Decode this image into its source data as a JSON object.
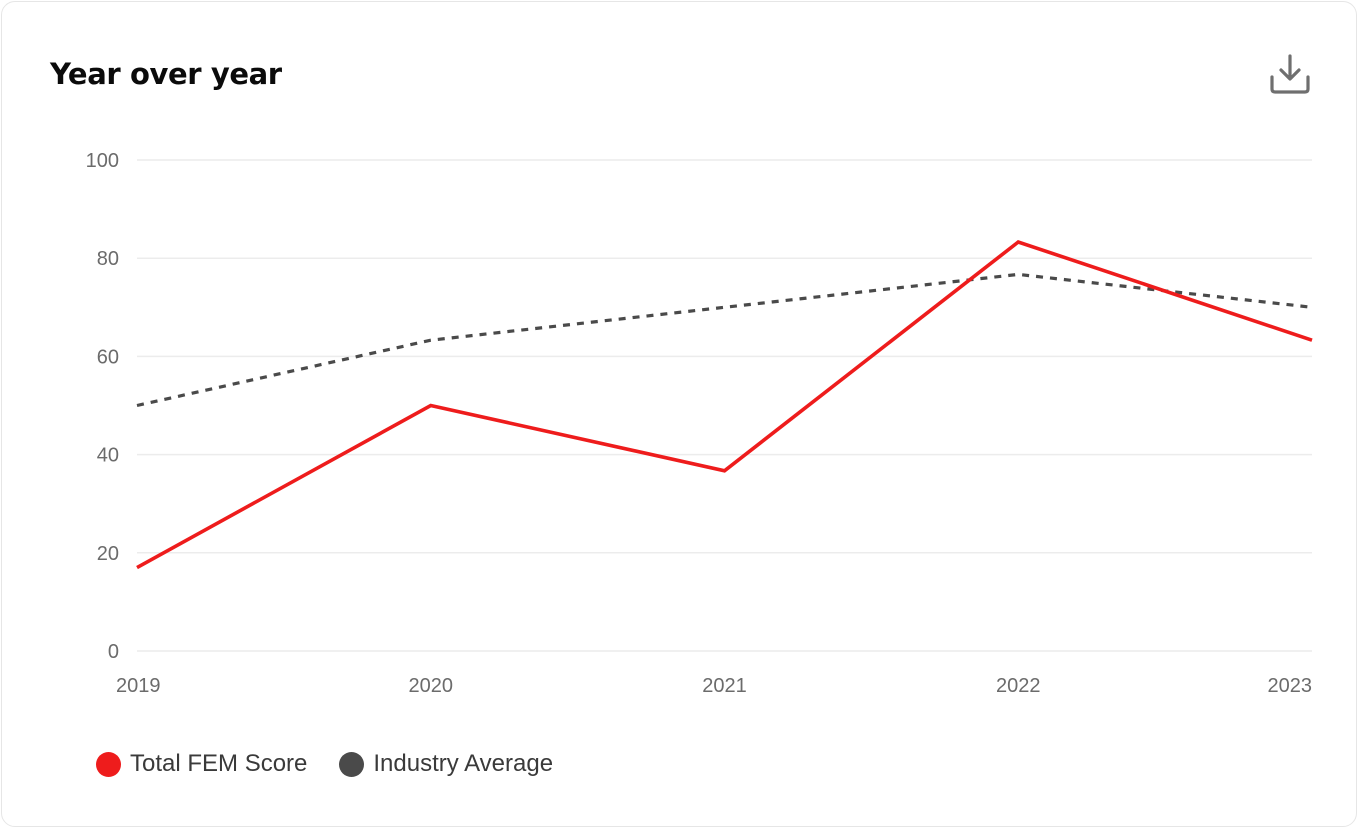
{
  "card": {
    "title": "Year over year",
    "download_icon": "download-icon"
  },
  "chart_data": {
    "type": "line",
    "title": "Year over year",
    "xlabel": "",
    "ylabel": "",
    "categories": [
      "2019",
      "2020",
      "2021",
      "2022",
      "2023"
    ],
    "ylim": [
      0,
      100
    ],
    "yticks": [
      "0",
      "20",
      "40",
      "60",
      "80",
      "100"
    ],
    "grid": true,
    "legend_position": "bottom-left",
    "series": [
      {
        "name": "Total FEM Score",
        "values": [
          17,
          50,
          36.7,
          83.3,
          63.3
        ],
        "color": "#ee1c1c",
        "style": "solid"
      },
      {
        "name": "Industry Average",
        "values": [
          50,
          63.3,
          70,
          76.7,
          70
        ],
        "color": "#4a4a4a",
        "style": "dotted"
      }
    ]
  }
}
